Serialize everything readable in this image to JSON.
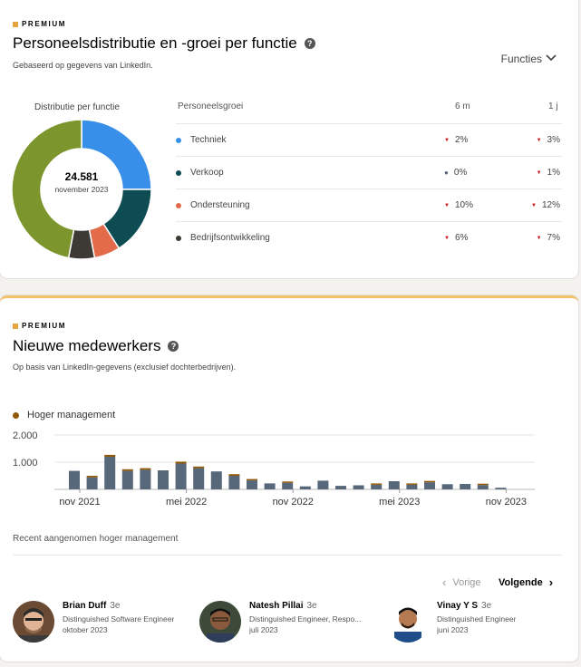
{
  "distribution": {
    "premium_label": "PREMIUM",
    "title": "Personeelsdistributie en -groei per functie",
    "help_icon": "?",
    "subtitle": "Gebaseerd op gegevens van LinkedIn.",
    "filter_label": "Functies",
    "donut_title": "Distributie per functie",
    "center_value": "24.581",
    "center_date": "november 2023",
    "table_headers": {
      "growth": "Personeelsgroei",
      "six_months": "6 m",
      "one_year": "1 j"
    },
    "colors": {
      "Techniek": "#378fe9",
      "Verkoop": "#0e4c53",
      "Ondersteuning": "#e36b4a",
      "Bedrijfsontwikkeling": "#3d3a36",
      "Overig": "#7c962d"
    },
    "rows": [
      {
        "name": "Techniek",
        "color": "#378fe9",
        "six_months": "2%",
        "six_trend": "down",
        "one_year": "3%",
        "one_trend": "down"
      },
      {
        "name": "Verkoop",
        "color": "#0e4c53",
        "six_months": "0%",
        "six_trend": "flat",
        "one_year": "1%",
        "one_trend": "down"
      },
      {
        "name": "Ondersteuning",
        "color": "#e36b4a",
        "six_months": "10%",
        "six_trend": "down",
        "one_year": "12%",
        "one_trend": "down"
      },
      {
        "name": "Bedrijfsontwikkeling",
        "color": "#3d3a36",
        "six_months": "6%",
        "six_trend": "down",
        "one_year": "7%",
        "one_trend": "down"
      }
    ],
    "chart_data": {
      "type": "pie",
      "slices": [
        {
          "value": 25,
          "color": "#378fe9"
        },
        {
          "value": 16,
          "color": "#0e4c53"
        },
        {
          "value": 6,
          "color": "#e36b4a"
        },
        {
          "value": 6,
          "color": "#3d3a36"
        },
        {
          "value": 47,
          "color": "#7c962d"
        }
      ]
    }
  },
  "hires": {
    "premium_label": "PREMIUM",
    "title": "Nieuwe medewerkers",
    "help_icon": "?",
    "subtitle": "Op basis van LinkedIn-gegevens (exclusief dochterbedrijven).",
    "legend_label": "Hoger management",
    "legend_color": "#915907",
    "chart_data": {
      "type": "bar",
      "stacked": true,
      "y_ticks": [
        "2.000",
        "1.000"
      ],
      "ylim": [
        0,
        2000
      ],
      "x_tick_labels": [
        "nov 2021",
        "mei 2022",
        "nov 2022",
        "mei 2023",
        "nov 2023"
      ],
      "base_color": "#56687a",
      "top_color": "#915907",
      "bars": [
        {
          "base": 680,
          "top": 0
        },
        {
          "base": 440,
          "top": 60
        },
        {
          "base": 1200,
          "top": 70
        },
        {
          "base": 680,
          "top": 60
        },
        {
          "base": 720,
          "top": 60
        },
        {
          "base": 700,
          "top": 0
        },
        {
          "base": 950,
          "top": 70
        },
        {
          "base": 780,
          "top": 60
        },
        {
          "base": 660,
          "top": 0
        },
        {
          "base": 500,
          "top": 60
        },
        {
          "base": 330,
          "top": 50
        },
        {
          "base": 220,
          "top": 0
        },
        {
          "base": 240,
          "top": 50
        },
        {
          "base": 110,
          "top": 0
        },
        {
          "base": 320,
          "top": 0
        },
        {
          "base": 130,
          "top": 0
        },
        {
          "base": 150,
          "top": 0
        },
        {
          "base": 170,
          "top": 50
        },
        {
          "base": 300,
          "top": 0
        },
        {
          "base": 170,
          "top": 50
        },
        {
          "base": 260,
          "top": 50
        },
        {
          "base": 190,
          "top": 0
        },
        {
          "base": 200,
          "top": 0
        },
        {
          "base": 160,
          "top": 50
        },
        {
          "base": 60,
          "top": 0
        }
      ]
    },
    "recent_label": "Recent aangenomen hoger management",
    "prev_label": "Vorige",
    "next_label": "Volgende",
    "people": [
      {
        "name": "Brian Duff",
        "degree": "3e",
        "role": "Distinguished Software Engineer",
        "date": "oktober 2023"
      },
      {
        "name": "Natesh Pillai",
        "degree": "3e",
        "role": "Distinguished Engineer, Respo...",
        "date": "juli 2023"
      },
      {
        "name": "Vinay Y S",
        "degree": "3e",
        "role": "Distinguished Engineer",
        "date": "juni 2023"
      }
    ]
  }
}
